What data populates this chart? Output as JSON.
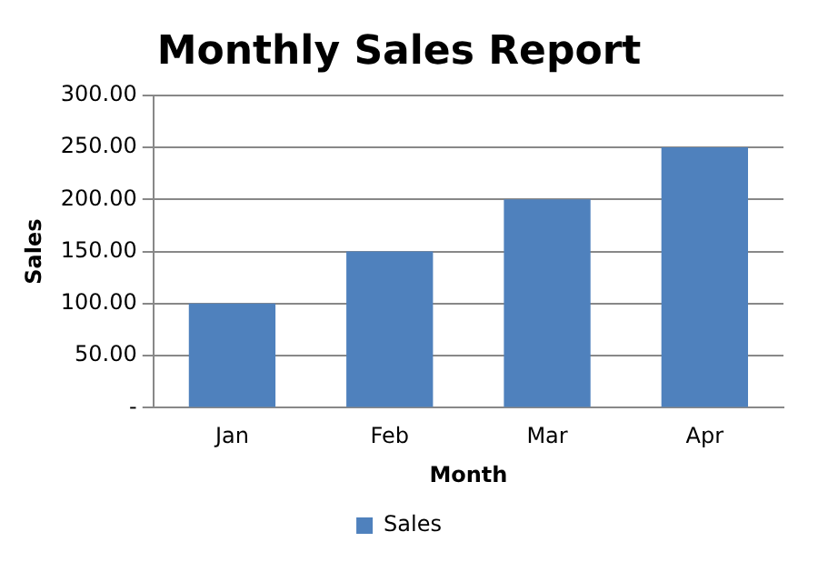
{
  "chart_data": {
    "type": "bar",
    "title": "Monthly Sales Report",
    "xlabel": "Month",
    "ylabel": "Sales",
    "categories": [
      "Jan",
      "Feb",
      "Mar",
      "Apr"
    ],
    "series": [
      {
        "name": "Sales",
        "color": "#4f81bd",
        "values": [
          100,
          150,
          200,
          250
        ]
      }
    ],
    "ylim": [
      0,
      300
    ],
    "yticks": [
      {
        "value": 0,
        "label": "-"
      },
      {
        "value": 50,
        "label": "50.00"
      },
      {
        "value": 100,
        "label": "100.00"
      },
      {
        "value": 150,
        "label": "150.00"
      },
      {
        "value": 200,
        "label": "200.00"
      },
      {
        "value": 250,
        "label": "250.00"
      },
      {
        "value": 300,
        "label": "300.00"
      }
    ],
    "grid": "y",
    "legend": "bottom"
  }
}
